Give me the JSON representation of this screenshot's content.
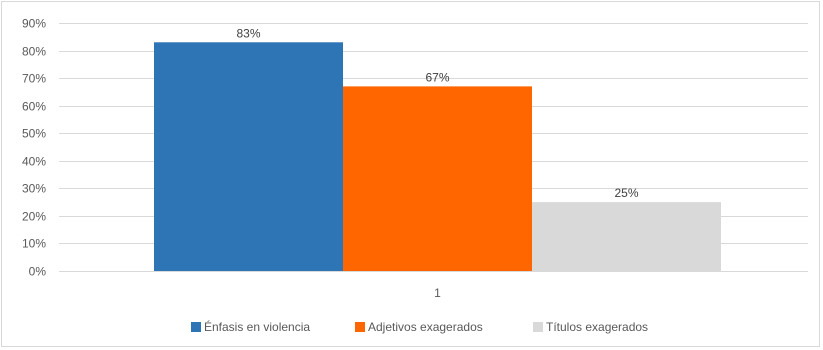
{
  "chart_data": {
    "type": "bar",
    "categories": [
      "1"
    ],
    "series": [
      {
        "name": "Énfasis en violencia",
        "values": [
          83
        ],
        "color": "#2e75b6",
        "label": "83%"
      },
      {
        "name": "Adjetivos exagerados",
        "values": [
          67
        ],
        "color": "#ff6600",
        "label": "67%"
      },
      {
        "name": "Títulos exagerados",
        "values": [
          25
        ],
        "color": "#d9d9d9",
        "label": "25%"
      }
    ],
    "ylim": [
      0,
      90
    ],
    "yticks": [
      0,
      10,
      20,
      30,
      40,
      50,
      60,
      70,
      80,
      90
    ],
    "ytick_labels": [
      "0%",
      "10%",
      "20%",
      "30%",
      "40%",
      "50%",
      "60%",
      "70%",
      "80%",
      "90%"
    ],
    "grid": true,
    "legend_position": "bottom",
    "gridline_color": "#d9d9d9"
  }
}
